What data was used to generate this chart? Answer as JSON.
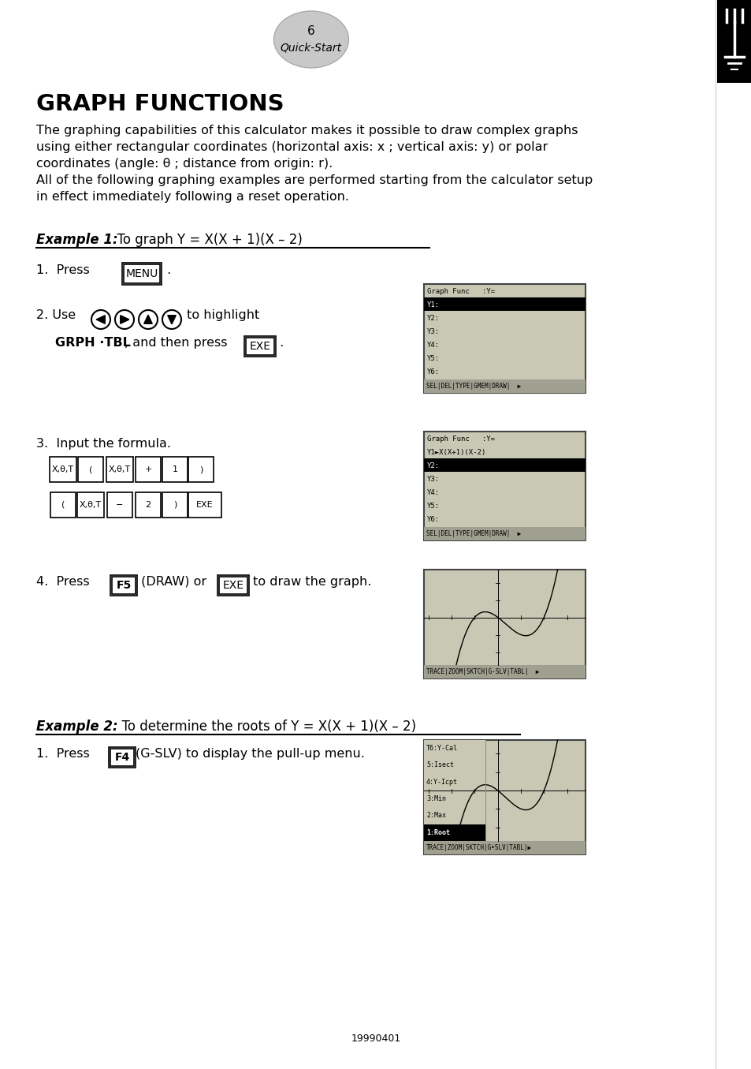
{
  "page_number": "6",
  "page_label": "Quick-Start",
  "title": "GRAPH FUNCTIONS",
  "intro_text_line1": "The graphing capabilities of this calculator makes it possible to draw complex graphs",
  "intro_text_line2": "using either rectangular coordinates (horizontal axis: x ; vertical axis: y) or polar",
  "intro_text_line3": "coordinates (angle: θ ; distance from origin: r).",
  "intro_text_line4": "All of the following graphing examples are performed starting from the calculator setup",
  "intro_text_line5": "in effect immediately following a reset operation.",
  "example1_label": "Example 1:",
  "example1_text": "  To graph Y = X(X + 1)(X – 2)",
  "example2_label": "Example 2:",
  "example2_text": "  To determine the roots of Y = X(X + 1)(X – 2)",
  "footer": "19990401",
  "bg_color": "#ffffff",
  "screen_bg": "#c8c8b4",
  "screen_border": "#444444",
  "menu_bar_bg": "#a0a090",
  "highlight_bg": "#000000",
  "highlight_fg": "#ffffff"
}
